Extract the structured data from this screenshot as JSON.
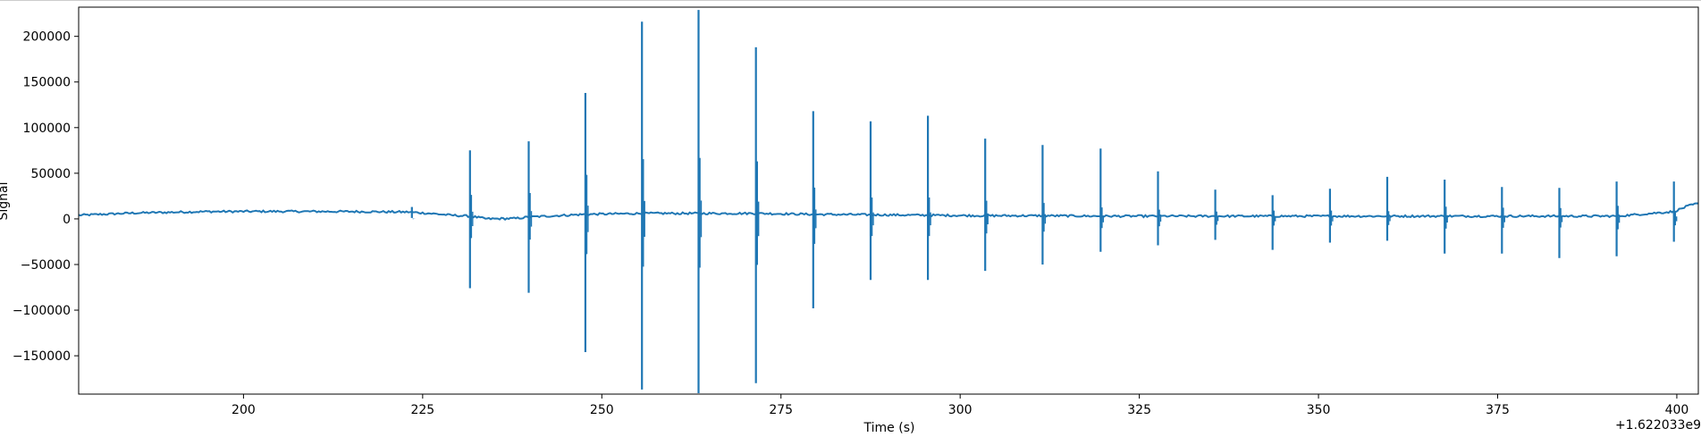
{
  "chart_data": {
    "type": "line",
    "title": "",
    "xlabel": "Time (s)",
    "ylabel": "Signal",
    "x_offset_label": "+1.622033e9",
    "xlim": [
      177,
      403
    ],
    "ylim": [
      -192000,
      232000
    ],
    "x_ticks": [
      200,
      225,
      250,
      275,
      300,
      325,
      350,
      375,
      400
    ],
    "x_tick_labels": [
      "200",
      "225",
      "250",
      "275",
      "300",
      "325",
      "350",
      "375",
      "400"
    ],
    "y_ticks": [
      -150000,
      -100000,
      -50000,
      0,
      50000,
      100000,
      150000,
      200000
    ],
    "y_tick_labels": [
      "−150000",
      "−100000",
      "−50000",
      "0",
      "50000",
      "100000",
      "150000",
      "200000"
    ],
    "grid": false,
    "line_color": "#1f77b4",
    "series": [
      {
        "baseline": [
          [
            177,
            4000
          ],
          [
            185,
            6500
          ],
          [
            195,
            8000
          ],
          [
            205,
            8200
          ],
          [
            215,
            8000
          ],
          [
            223,
            7500
          ],
          [
            226,
            6000
          ],
          [
            229,
            4000
          ],
          [
            231.6,
            3000
          ],
          [
            234,
            0
          ],
          [
            238,
            500
          ],
          [
            239.8,
            2000
          ],
          [
            245,
            4000
          ],
          [
            247.7,
            5000
          ],
          [
            255.6,
            6000
          ],
          [
            263.5,
            6000
          ],
          [
            271.5,
            6000
          ],
          [
            279.5,
            5000
          ],
          [
            287.5,
            4500
          ],
          [
            295.5,
            4000
          ],
          [
            303.5,
            3500
          ],
          [
            311.5,
            3500
          ],
          [
            319.6,
            3000
          ],
          [
            327.6,
            3000
          ],
          [
            335.6,
            3000
          ],
          [
            343.6,
            3000
          ],
          [
            351.6,
            3000
          ],
          [
            359.6,
            3000
          ],
          [
            367.6,
            3000
          ],
          [
            375.6,
            3000
          ],
          [
            383.6,
            3000
          ],
          [
            391.6,
            3000
          ],
          [
            399.6,
            8000
          ],
          [
            401.5,
            14000
          ],
          [
            403,
            17000
          ]
        ],
        "spikes": [
          {
            "x": 223.5,
            "max": 13000,
            "min": 1000
          },
          {
            "x": 231.6,
            "max": 75000,
            "min": -76000
          },
          {
            "x": 239.8,
            "max": 85000,
            "min": -81000
          },
          {
            "x": 247.7,
            "max": 138000,
            "min": -146000
          },
          {
            "x": 255.6,
            "max": 216000,
            "min": -187000
          },
          {
            "x": 263.5,
            "max": 229000,
            "min": -191000
          },
          {
            "x": 271.5,
            "max": 188000,
            "min": -180000
          },
          {
            "x": 279.5,
            "max": 118000,
            "min": -98000
          },
          {
            "x": 287.5,
            "max": 107000,
            "min": -67000
          },
          {
            "x": 295.5,
            "max": 113000,
            "min": -67000
          },
          {
            "x": 303.5,
            "max": 88000,
            "min": -57000
          },
          {
            "x": 311.5,
            "max": 81000,
            "min": -50000
          },
          {
            "x": 319.6,
            "max": 77000,
            "min": -36000
          },
          {
            "x": 327.6,
            "max": 52000,
            "min": -29000
          },
          {
            "x": 335.6,
            "max": 32000,
            "min": -23000
          },
          {
            "x": 343.6,
            "max": 26000,
            "min": -34000
          },
          {
            "x": 351.6,
            "max": 33000,
            "min": -26000
          },
          {
            "x": 359.6,
            "max": 46000,
            "min": -24000
          },
          {
            "x": 367.6,
            "max": 43000,
            "min": -38000
          },
          {
            "x": 375.6,
            "max": 35000,
            "min": -38000
          },
          {
            "x": 383.6,
            "max": 34000,
            "min": -43000
          },
          {
            "x": 391.6,
            "max": 41000,
            "min": -41000
          },
          {
            "x": 399.6,
            "max": 41000,
            "min": -25000
          }
        ]
      }
    ]
  }
}
